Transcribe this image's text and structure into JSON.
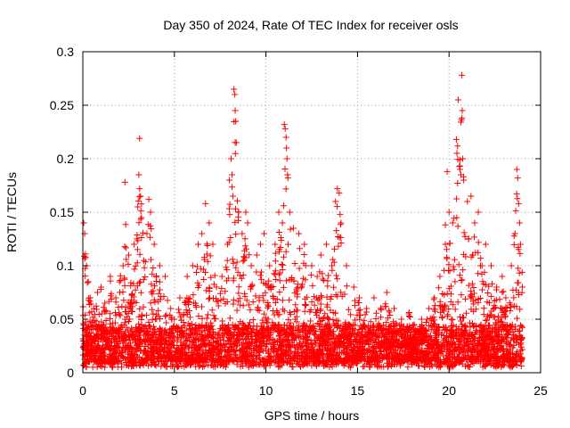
{
  "chart_data": {
    "type": "scatter",
    "title": "Day 350 of 2024, Rate Of TEC Index for receiver osls",
    "xlabel": "GPS time / hours",
    "ylabel": "ROTI / TECUs",
    "xlim": [
      0,
      25
    ],
    "ylim": [
      0,
      0.3
    ],
    "xticks": [
      0,
      5,
      10,
      15,
      20,
      25
    ],
    "yticks": [
      0,
      0.05,
      0.1,
      0.15,
      0.2,
      0.25,
      0.3
    ],
    "xtick_labels": [
      "0",
      "5",
      "10",
      "15",
      "20",
      "25"
    ],
    "ytick_labels": [
      "0",
      "0.05",
      "0.1",
      "0.15",
      "0.2",
      "0.25",
      "0.3"
    ],
    "grid": true,
    "marker": "+",
    "color": "#ff0000",
    "series": [
      {
        "name": "ROTI",
        "points": [
          [
            0.05,
            0.14
          ],
          [
            0.1,
            0.13
          ],
          [
            0.15,
            0.108
          ],
          [
            0.2,
            0.1
          ],
          [
            0.3,
            0.085
          ],
          [
            0.4,
            0.07
          ],
          [
            0.6,
            0.06
          ],
          [
            0.8,
            0.075
          ],
          [
            1.0,
            0.08
          ],
          [
            1.2,
            0.065
          ],
          [
            1.5,
            0.09
          ],
          [
            1.8,
            0.07
          ],
          [
            2.0,
            0.085
          ],
          [
            2.2,
            0.1
          ],
          [
            2.3,
            0.178
          ],
          [
            2.5,
            0.11
          ],
          [
            2.8,
            0.12
          ],
          [
            3.0,
            0.155
          ],
          [
            3.1,
            0.219
          ],
          [
            3.15,
            0.165
          ],
          [
            3.2,
            0.145
          ],
          [
            3.5,
            0.13
          ],
          [
            3.6,
            0.162
          ],
          [
            3.7,
            0.15
          ],
          [
            3.9,
            0.12
          ],
          [
            4.2,
            0.1
          ],
          [
            4.5,
            0.09
          ],
          [
            4.8,
            0.06
          ],
          [
            5.0,
            0.05
          ],
          [
            5.3,
            0.07
          ],
          [
            5.7,
            0.09
          ],
          [
            6.0,
            0.1
          ],
          [
            6.3,
            0.12
          ],
          [
            6.5,
            0.13
          ],
          [
            6.7,
            0.158
          ],
          [
            6.9,
            0.14
          ],
          [
            7.1,
            0.12
          ],
          [
            7.3,
            0.08
          ],
          [
            7.6,
            0.09
          ],
          [
            7.9,
            0.12
          ],
          [
            8.0,
            0.18
          ],
          [
            8.1,
            0.2
          ],
          [
            8.15,
            0.185
          ],
          [
            8.2,
            0.165
          ],
          [
            8.25,
            0.265
          ],
          [
            8.3,
            0.26
          ],
          [
            8.32,
            0.245
          ],
          [
            8.35,
            0.235
          ],
          [
            8.38,
            0.215
          ],
          [
            8.5,
            0.15
          ],
          [
            8.7,
            0.13
          ],
          [
            8.9,
            0.15
          ],
          [
            9.0,
            0.14
          ],
          [
            9.2,
            0.1
          ],
          [
            9.5,
            0.11
          ],
          [
            9.7,
            0.12
          ],
          [
            9.9,
            0.13
          ],
          [
            10.2,
            0.1
          ],
          [
            10.5,
            0.12
          ],
          [
            10.7,
            0.15
          ],
          [
            10.9,
            0.14
          ],
          [
            11.0,
            0.232
          ],
          [
            11.05,
            0.228
          ],
          [
            11.1,
            0.22
          ],
          [
            11.12,
            0.21
          ],
          [
            11.15,
            0.2
          ],
          [
            11.18,
            0.185
          ],
          [
            11.2,
            0.182
          ],
          [
            11.3,
            0.15
          ],
          [
            11.5,
            0.135
          ],
          [
            11.8,
            0.13
          ],
          [
            12.1,
            0.12
          ],
          [
            12.5,
            0.1
          ],
          [
            12.8,
            0.09
          ],
          [
            13.0,
            0.11
          ],
          [
            13.3,
            0.12
          ],
          [
            13.6,
            0.1
          ],
          [
            13.8,
            0.16
          ],
          [
            13.9,
            0.172
          ],
          [
            14.0,
            0.168
          ],
          [
            14.05,
            0.148
          ],
          [
            14.1,
            0.14
          ],
          [
            14.4,
            0.1
          ],
          [
            14.8,
            0.08
          ],
          [
            15.1,
            0.07
          ],
          [
            15.5,
            0.06
          ],
          [
            15.9,
            0.07
          ],
          [
            16.3,
            0.06
          ],
          [
            16.6,
            0.075
          ],
          [
            17.0,
            0.06
          ],
          [
            17.4,
            0.05
          ],
          [
            17.8,
            0.055
          ],
          [
            18.1,
            0.045
          ],
          [
            18.5,
            0.05
          ],
          [
            18.9,
            0.06
          ],
          [
            19.2,
            0.07
          ],
          [
            19.5,
            0.09
          ],
          [
            19.8,
            0.12
          ],
          [
            19.9,
            0.188
          ],
          [
            20.0,
            0.15
          ],
          [
            20.2,
            0.14
          ],
          [
            20.4,
            0.218
          ],
          [
            20.5,
            0.255
          ],
          [
            20.6,
            0.19
          ],
          [
            20.65,
            0.185
          ],
          [
            20.7,
            0.278
          ],
          [
            20.72,
            0.245
          ],
          [
            20.75,
            0.2
          ],
          [
            20.8,
            0.18
          ],
          [
            21.0,
            0.16
          ],
          [
            21.2,
            0.165
          ],
          [
            21.4,
            0.14
          ],
          [
            21.6,
            0.15
          ],
          [
            21.8,
            0.1
          ],
          [
            22.0,
            0.12
          ],
          [
            22.3,
            0.1
          ],
          [
            22.6,
            0.08
          ],
          [
            22.9,
            0.09
          ],
          [
            23.1,
            0.07
          ],
          [
            23.4,
            0.1
          ],
          [
            23.6,
            0.13
          ],
          [
            23.7,
            0.19
          ],
          [
            23.75,
            0.182
          ],
          [
            23.8,
            0.158
          ],
          [
            23.85,
            0.14
          ],
          [
            23.9,
            0.12
          ],
          [
            24.0,
            0.08
          ]
        ],
        "background_band": {
          "description": "dense cloud of low ROTI values across the whole day",
          "x_range": [
            0,
            24
          ],
          "y_range": [
            0.005,
            0.045
          ]
        }
      }
    ]
  }
}
